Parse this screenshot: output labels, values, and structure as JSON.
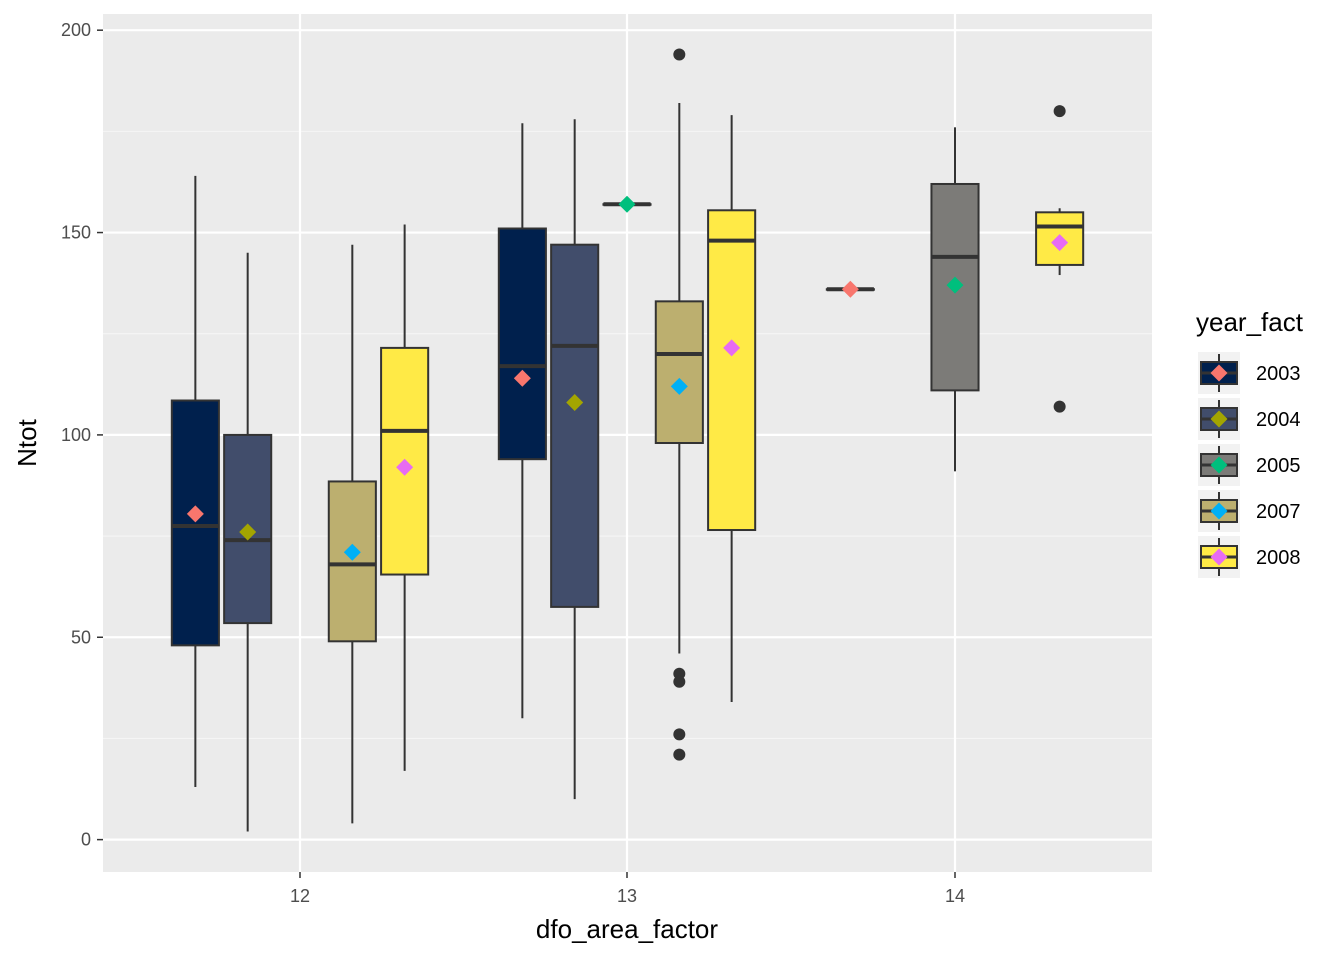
{
  "chart_data": {
    "type": "boxplot",
    "xlabel": "dfo_area_factor",
    "ylabel": "Ntot",
    "ylim": [
      -8,
      204
    ],
    "yticks": [
      0,
      50,
      100,
      150,
      200
    ],
    "categories": [
      "12",
      "13",
      "14"
    ],
    "grid": true,
    "legend": {
      "title": "year_fact",
      "placement": "right"
    },
    "series": [
      {
        "name": "2003",
        "fill": "#00204D",
        "mean_color": "#F8766D",
        "boxes": [
          {
            "category": "12",
            "lower_whisker": 13,
            "q1": 48,
            "median": 77.5,
            "q3": 108.5,
            "upper_whisker": 164,
            "mean": 80.5,
            "outliers": []
          },
          {
            "category": "13",
            "lower_whisker": 30,
            "q1": 94,
            "median": 117,
            "q3": 151,
            "upper_whisker": 177,
            "mean": 114,
            "outliers": []
          },
          {
            "category": "14",
            "lower_whisker": 136,
            "q1": 136,
            "median": 136,
            "q3": 136,
            "upper_whisker": 136,
            "mean": 136,
            "outliers": []
          }
        ]
      },
      {
        "name": "2004",
        "fill": "#414D6B",
        "mean_color": "#A3A500",
        "boxes": [
          {
            "category": "12",
            "lower_whisker": 2,
            "q1": 53.5,
            "median": 74,
            "q3": 100,
            "upper_whisker": 145,
            "mean": 76,
            "outliers": []
          },
          {
            "category": "13",
            "lower_whisker": 10,
            "q1": 57.5,
            "median": 122,
            "q3": 147,
            "upper_whisker": 178,
            "mean": 108,
            "outliers": []
          }
        ]
      },
      {
        "name": "2005",
        "fill": "#7C7B78",
        "mean_color": "#00BF7D",
        "boxes": [
          {
            "category": "13",
            "lower_whisker": 157,
            "q1": 157,
            "median": 157,
            "q3": 157,
            "upper_whisker": 157,
            "mean": 157,
            "outliers": []
          },
          {
            "category": "14",
            "lower_whisker": 91,
            "q1": 111,
            "median": 144,
            "q3": 162,
            "upper_whisker": 176,
            "mean": 137,
            "outliers": []
          }
        ]
      },
      {
        "name": "2007",
        "fill": "#BCAF6F",
        "mean_color": "#00B0F6",
        "boxes": [
          {
            "category": "12",
            "lower_whisker": 4,
            "q1": 49,
            "median": 68,
            "q3": 88.5,
            "upper_whisker": 147,
            "mean": 71,
            "outliers": []
          },
          {
            "category": "13",
            "lower_whisker": 46,
            "q1": 98,
            "median": 120,
            "q3": 133,
            "upper_whisker": 182,
            "mean": 112,
            "outliers": [
              194,
              41,
              39,
              26,
              21
            ]
          }
        ]
      },
      {
        "name": "2008",
        "fill": "#FFEA46",
        "mean_color": "#E76BF3",
        "boxes": [
          {
            "category": "12",
            "lower_whisker": 17,
            "q1": 65.5,
            "median": 101,
            "q3": 121.5,
            "upper_whisker": 152,
            "mean": 92,
            "outliers": []
          },
          {
            "category": "13",
            "lower_whisker": 34,
            "q1": 76.5,
            "median": 148,
            "q3": 155.5,
            "upper_whisker": 179,
            "mean": 121.5,
            "outliers": []
          },
          {
            "category": "14",
            "lower_whisker": 139.5,
            "q1": 142,
            "median": 151.5,
            "q3": 155,
            "upper_whisker": 156,
            "mean": 147.5,
            "outliers": [
              180,
              107
            ]
          }
        ]
      }
    ],
    "colors": {
      "panel_background": "#EBEBEB",
      "grid_major": "#FFFFFF",
      "grid_minor": "#F5F5F5",
      "box_outline": "#333333",
      "legend_key_background": "#F2F2F2"
    }
  }
}
